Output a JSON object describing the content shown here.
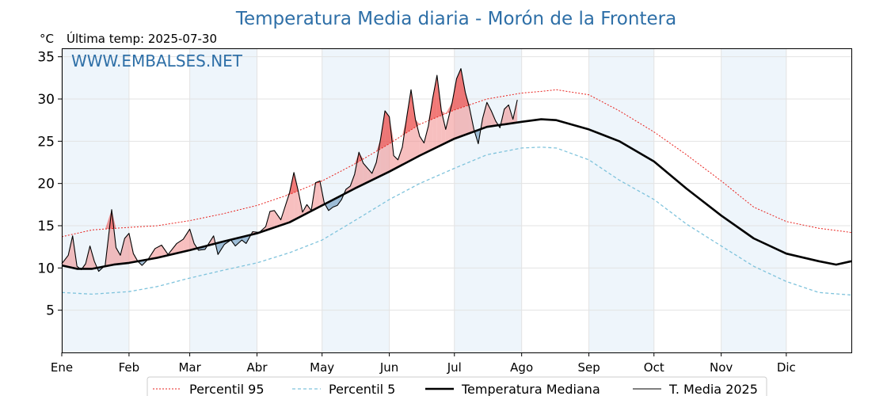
{
  "chart_data": {
    "type": "line",
    "title": "Temperatura Media diaria - Morón de la Frontera",
    "ylabel": "°C",
    "last_temp_label": "Última temp: 2025-07-30",
    "watermark": "WWW.EMBALSES.NET",
    "xlim_days": [
      1,
      365
    ],
    "ylim": [
      0,
      36
    ],
    "y_ticks": [
      5,
      10,
      15,
      20,
      25,
      30,
      35
    ],
    "month_ticks": [
      {
        "label": "Ene",
        "day": 1
      },
      {
        "label": "Feb",
        "day": 32
      },
      {
        "label": "Mar",
        "day": 60
      },
      {
        "label": "Abr",
        "day": 91
      },
      {
        "label": "May",
        "day": 121
      },
      {
        "label": "Jun",
        "day": 152
      },
      {
        "label": "Jul",
        "day": 182
      },
      {
        "label": "Ago",
        "day": 213
      },
      {
        "label": "Sep",
        "day": 244
      },
      {
        "label": "Oct",
        "day": 274
      },
      {
        "label": "Nov",
        "day": 305
      },
      {
        "label": "Dic",
        "day": 335
      }
    ],
    "shaded_months": [
      [
        1,
        32
      ],
      [
        60,
        91
      ],
      [
        121,
        152
      ],
      [
        182,
        213
      ],
      [
        244,
        274
      ],
      [
        305,
        335
      ]
    ],
    "grid": true,
    "legend_position": "bottom",
    "colors": {
      "title": "#2e6fa7",
      "p95": "#e8231f",
      "p5": "#7fc3dc",
      "median": "#000000",
      "actual": "#000000",
      "above_fill": "#f08a8a",
      "below_fill": "#5a8cb8",
      "month_shade": "#eef5fb",
      "grid": "#e3e3e3"
    },
    "series": [
      {
        "name": "Percentil 95",
        "key": "p95",
        "points": [
          [
            1,
            13.7
          ],
          [
            15,
            14.5
          ],
          [
            32,
            14.8
          ],
          [
            45,
            15
          ],
          [
            60,
            15.6
          ],
          [
            75,
            16.4
          ],
          [
            91,
            17.4
          ],
          [
            106,
            18.7
          ],
          [
            121,
            20.3
          ],
          [
            136,
            22.3
          ],
          [
            152,
            24.7
          ],
          [
            166,
            27
          ],
          [
            182,
            28.7
          ],
          [
            197,
            30
          ],
          [
            213,
            30.7
          ],
          [
            222,
            30.9
          ],
          [
            229,
            31.1
          ],
          [
            244,
            30.5
          ],
          [
            258,
            28.6
          ],
          [
            274,
            26.1
          ],
          [
            289,
            23.4
          ],
          [
            305,
            20.3
          ],
          [
            320,
            17.2
          ],
          [
            335,
            15.5
          ],
          [
            350,
            14.7
          ],
          [
            365,
            14.2
          ]
        ]
      },
      {
        "name": "Percentil 5",
        "key": "p5",
        "points": [
          [
            1,
            7.1
          ],
          [
            15,
            6.9
          ],
          [
            32,
            7.2
          ],
          [
            45,
            7.8
          ],
          [
            60,
            8.8
          ],
          [
            75,
            9.7
          ],
          [
            91,
            10.6
          ],
          [
            106,
            11.8
          ],
          [
            121,
            13.3
          ],
          [
            136,
            15.6
          ],
          [
            152,
            18.1
          ],
          [
            166,
            20
          ],
          [
            182,
            21.8
          ],
          [
            197,
            23.4
          ],
          [
            213,
            24.2
          ],
          [
            222,
            24.3
          ],
          [
            229,
            24.2
          ],
          [
            244,
            22.8
          ],
          [
            258,
            20.4
          ],
          [
            274,
            18.1
          ],
          [
            289,
            15.2
          ],
          [
            305,
            12.6
          ],
          [
            320,
            10.2
          ],
          [
            335,
            8.4
          ],
          [
            350,
            7.1
          ],
          [
            365,
            6.8
          ]
        ]
      },
      {
        "name": "Temperatura Mediana",
        "key": "median",
        "points": [
          [
            1,
            10.3
          ],
          [
            8,
            9.9
          ],
          [
            15,
            9.9
          ],
          [
            25,
            10.4
          ],
          [
            32,
            10.6
          ],
          [
            45,
            11.2
          ],
          [
            60,
            12.1
          ],
          [
            75,
            13.1
          ],
          [
            91,
            14.1
          ],
          [
            106,
            15.4
          ],
          [
            121,
            17.4
          ],
          [
            136,
            19.4
          ],
          [
            152,
            21.4
          ],
          [
            166,
            23.3
          ],
          [
            182,
            25.3
          ],
          [
            197,
            26.7
          ],
          [
            213,
            27.3
          ],
          [
            222,
            27.6
          ],
          [
            229,
            27.5
          ],
          [
            244,
            26.4
          ],
          [
            258,
            25
          ],
          [
            274,
            22.6
          ],
          [
            289,
            19.4
          ],
          [
            305,
            16.2
          ],
          [
            320,
            13.5
          ],
          [
            335,
            11.7
          ],
          [
            350,
            10.8
          ],
          [
            358,
            10.4
          ],
          [
            365,
            10.8
          ]
        ]
      },
      {
        "name": "T. Media 2025",
        "key": "actual",
        "points": [
          [
            1,
            10.5
          ],
          [
            4,
            11.5
          ],
          [
            6,
            13.8
          ],
          [
            8,
            10.2
          ],
          [
            10,
            9.8
          ],
          [
            12,
            10.5
          ],
          [
            14,
            12.6
          ],
          [
            16,
            10.8
          ],
          [
            18,
            9.6
          ],
          [
            21,
            10.3
          ],
          [
            24,
            16.9
          ],
          [
            26,
            12.4
          ],
          [
            28,
            11.5
          ],
          [
            30,
            13.5
          ],
          [
            32,
            14.1
          ],
          [
            34,
            11.7
          ],
          [
            36,
            10.8
          ],
          [
            38,
            10.3
          ],
          [
            41,
            11.1
          ],
          [
            44,
            12.3
          ],
          [
            47,
            12.7
          ],
          [
            50,
            11.6
          ],
          [
            54,
            12.9
          ],
          [
            57,
            13.4
          ],
          [
            60,
            14.6
          ],
          [
            62,
            12.9
          ],
          [
            64,
            12.1
          ],
          [
            67,
            12.2
          ],
          [
            71,
            13.8
          ],
          [
            73,
            11.6
          ],
          [
            76,
            12.8
          ],
          [
            79,
            13.3
          ],
          [
            81,
            12.6
          ],
          [
            84,
            13.3
          ],
          [
            86,
            12.9
          ],
          [
            89,
            14.3
          ],
          [
            92,
            14.2
          ],
          [
            95,
            14.9
          ],
          [
            97,
            16.7
          ],
          [
            99,
            16.8
          ],
          [
            102,
            15.7
          ],
          [
            104,
            17.3
          ],
          [
            106,
            18.9
          ],
          [
            108,
            21.3
          ],
          [
            110,
            19.1
          ],
          [
            112,
            16.6
          ],
          [
            114,
            17.5
          ],
          [
            116,
            16.8
          ],
          [
            118,
            20.1
          ],
          [
            120,
            20.3
          ],
          [
            122,
            17.7
          ],
          [
            124,
            16.8
          ],
          [
            126,
            17.2
          ],
          [
            128,
            17.4
          ],
          [
            130,
            18.1
          ],
          [
            132,
            19.3
          ],
          [
            134,
            19.7
          ],
          [
            136,
            21.1
          ],
          [
            138,
            23.7
          ],
          [
            140,
            22.4
          ],
          [
            142,
            21.8
          ],
          [
            144,
            21.2
          ],
          [
            146,
            22.5
          ],
          [
            148,
            25.3
          ],
          [
            150,
            28.6
          ],
          [
            152,
            27.9
          ],
          [
            154,
            23.3
          ],
          [
            156,
            22.8
          ],
          [
            158,
            24.3
          ],
          [
            160,
            27.8
          ],
          [
            162,
            31.1
          ],
          [
            164,
            27.6
          ],
          [
            166,
            25.6
          ],
          [
            168,
            24.8
          ],
          [
            170,
            26.8
          ],
          [
            172,
            30.1
          ],
          [
            174,
            32.8
          ],
          [
            176,
            28.6
          ],
          [
            178,
            26.4
          ],
          [
            181,
            29.6
          ],
          [
            183,
            32.4
          ],
          [
            185,
            33.6
          ],
          [
            187,
            30.8
          ],
          [
            189,
            28.9
          ],
          [
            191,
            26.4
          ],
          [
            193,
            24.7
          ],
          [
            195,
            27.7
          ],
          [
            197,
            29.6
          ],
          [
            199,
            28.6
          ],
          [
            201,
            27.4
          ],
          [
            203,
            26.6
          ],
          [
            205,
            28.8
          ],
          [
            207,
            29.3
          ],
          [
            209,
            27.6
          ],
          [
            211,
            29.9
          ]
        ]
      }
    ]
  }
}
